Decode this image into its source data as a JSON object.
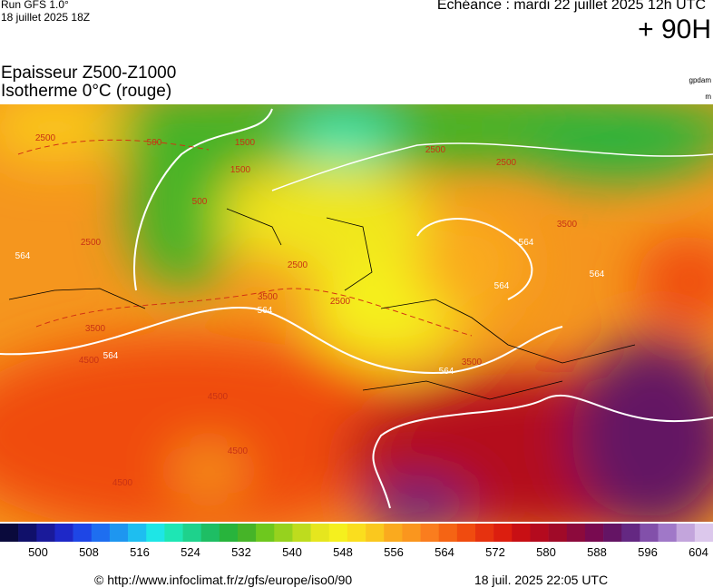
{
  "header": {
    "run": "Run GFS 1.0°",
    "run_date": "18 juillet 2025 18Z",
    "valid": "Echéance : mardi 22 juillet 2025 12h UTC",
    "lead": "+ 90H"
  },
  "title": {
    "line1": "Epaisseur Z500-Z1000",
    "line2": "Isotherme 0°C (rouge)",
    "unit1": "gpdam",
    "unit2": "m"
  },
  "map": {
    "contour_labels": [
      "2500",
      "2500",
      "1500",
      "500",
      "564",
      "2500",
      "564",
      "3500",
      "564",
      "564",
      "2500",
      "500",
      "1500",
      "3500",
      "4500",
      "4500",
      "4500",
      "564",
      "564",
      "2500",
      "3500",
      "4500",
      "564",
      "2500",
      "3500"
    ]
  },
  "colorbar": {
    "colors": [
      "#0a0a3c",
      "#10106a",
      "#1a1a9a",
      "#1e28c8",
      "#1e46e6",
      "#1e6ef0",
      "#1e96f0",
      "#1ebef0",
      "#1ee6e6",
      "#1ee6b4",
      "#1ed28c",
      "#1ebe64",
      "#28b43c",
      "#46b428",
      "#6ec81e",
      "#96d21e",
      "#bedc1e",
      "#e6e61e",
      "#f5f01e",
      "#fade1e",
      "#fac81e",
      "#faaa1e",
      "#fa961e",
      "#fa7d1e",
      "#f56414",
      "#f04b0f",
      "#e6320f",
      "#dc1e0f",
      "#c80f14",
      "#b40a1e",
      "#a00a28",
      "#8c0a3c",
      "#780a50",
      "#641464",
      "#642882",
      "#8250aa",
      "#a078c8",
      "#c3a5dc",
      "#dcc8ec"
    ],
    "labels": [
      "500",
      "508",
      "516",
      "524",
      "532",
      "540",
      "548",
      "556",
      "564",
      "572",
      "580",
      "588",
      "596",
      "604"
    ]
  },
  "footer": {
    "url": "© http://www.infoclimat.fr/z/gfs/europe/iso0/90",
    "generated": "18 juil. 2025 22:05 UTC"
  }
}
